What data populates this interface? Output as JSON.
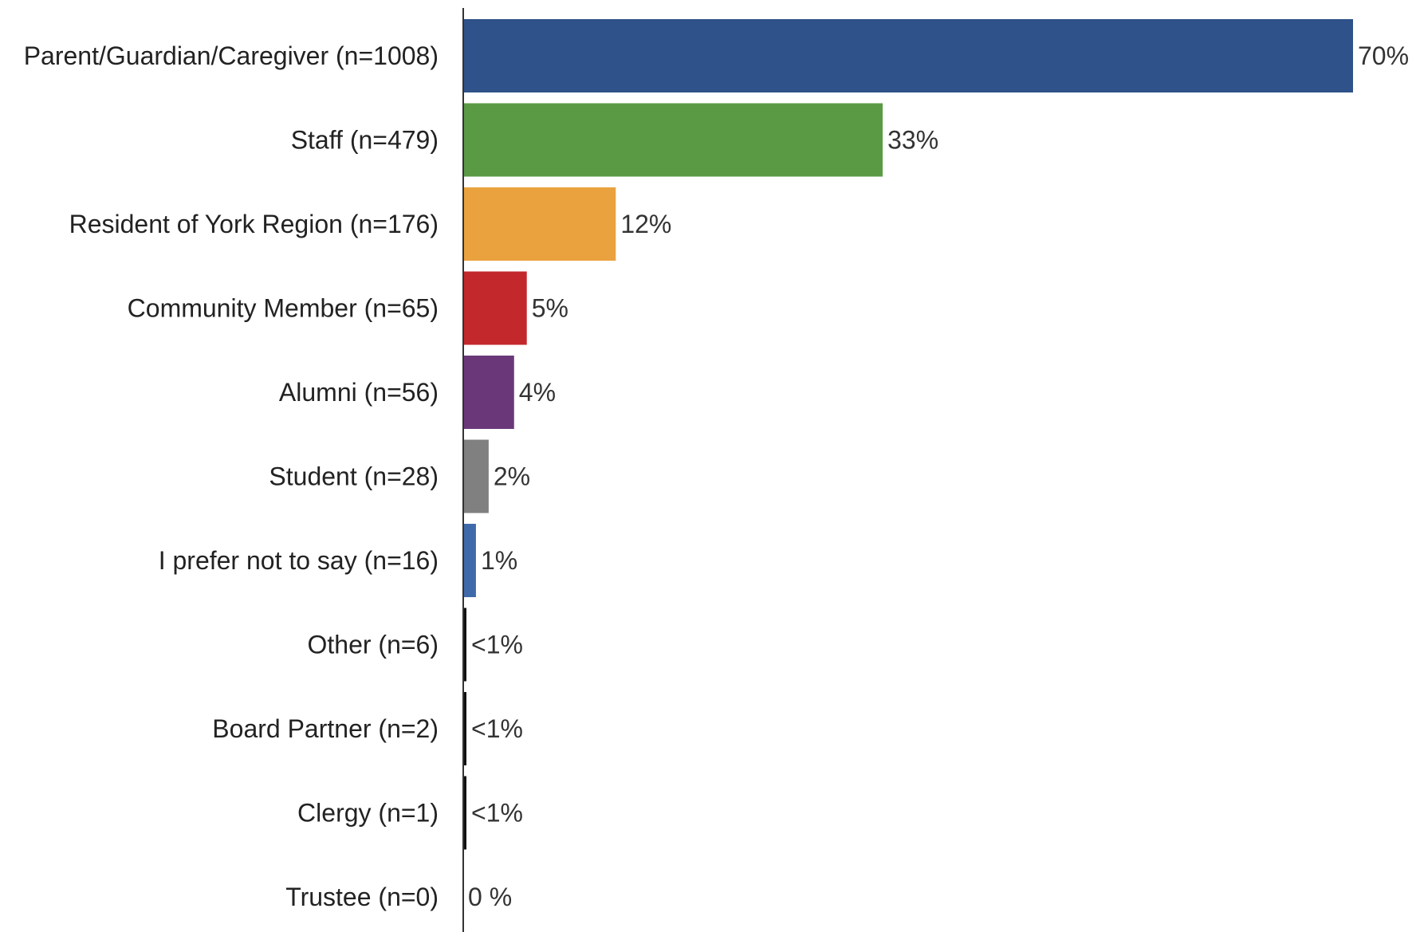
{
  "chart_data": {
    "type": "bar",
    "orientation": "horizontal",
    "title": "",
    "xlabel": "",
    "ylabel": "",
    "xlim": [
      0,
      70
    ],
    "grid": false,
    "legend": "none",
    "categories": [
      "Parent/Guardian/Caregiver (n=1008)",
      "Staff (n=479)",
      "Resident of York Region (n=176)",
      "Community Member (n=65)",
      "Alumni (n=56)",
      "Student (n=28)",
      "I prefer not to say (n=16)",
      "Other (n=6)",
      "Board Partner (n=2)",
      "Clergy (n=1)",
      "Trustee (n=0)"
    ],
    "values": [
      70,
      33,
      12,
      5,
      4,
      2,
      1,
      0.2,
      0.2,
      0.2,
      0
    ],
    "data_labels": [
      "70%",
      "33%",
      "12%",
      "5%",
      "4%",
      "2%",
      "1%",
      "<1%",
      "<1%",
      "<1%",
      "0 %"
    ],
    "colors": [
      "#2e5289",
      "#5b9a45",
      "#eaa23e",
      "#c3282d",
      "#6a3878",
      "#808080",
      "#3f6aaa",
      "#111111",
      "#111111",
      "#111111",
      "#111111"
    ],
    "axis_color": "#333333"
  }
}
